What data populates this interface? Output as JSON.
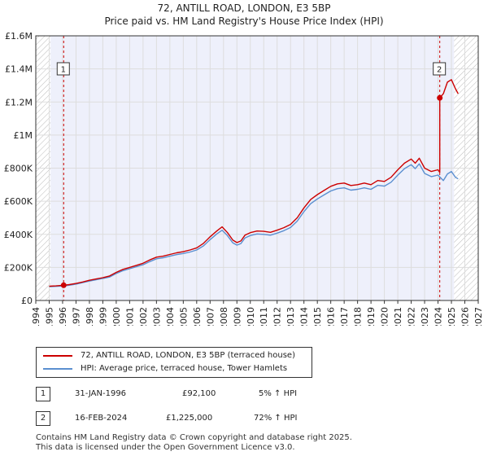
{
  "chart_data": {
    "type": "line",
    "title": "72, ANTILL ROAD, LONDON, E3 5BP",
    "subtitle": "Price paid vs. HM Land Registry's House Price Index (HPI)",
    "xlim": [
      1994,
      2027
    ],
    "ylim": [
      0,
      1600000
    ],
    "x_ticks": [
      "1994",
      "1995",
      "1996",
      "1997",
      "1998",
      "1999",
      "2000",
      "2001",
      "2002",
      "2003",
      "2004",
      "2005",
      "2006",
      "2007",
      "2008",
      "2009",
      "2010",
      "2011",
      "2012",
      "2013",
      "2014",
      "2015",
      "2016",
      "2017",
      "2018",
      "2019",
      "2020",
      "2021",
      "2022",
      "2023",
      "2024",
      "2025",
      "2026",
      "2027"
    ],
    "y_ticks": [
      {
        "value": 0,
        "label": "£0"
      },
      {
        "value": 200000,
        "label": "£200K"
      },
      {
        "value": 400000,
        "label": "£400K"
      },
      {
        "value": 600000,
        "label": "£600K"
      },
      {
        "value": 800000,
        "label": "£800K"
      },
      {
        "value": 1000000,
        "label": "£1M"
      },
      {
        "value": 1200000,
        "label": "£1.2M"
      },
      {
        "value": 1400000,
        "label": "£1.4M"
      },
      {
        "value": 1600000,
        "label": "£1.6M"
      }
    ],
    "grid": true,
    "shaded_period": [
      1995.1,
      2025.2
    ],
    "hatched_before": 1995.1,
    "hatched_after": 2025.2,
    "series": [
      {
        "name": "72, ANTILL ROAD, LONDON, E3 5BP (terraced house)",
        "color": "#cc0000",
        "x": [
          1995.0,
          1995.5,
          1996.08,
          1996.5,
          1997.0,
          1997.5,
          1998.0,
          1998.5,
          1999.0,
          1999.5,
          2000.0,
          2000.5,
          2001.0,
          2001.5,
          2002.0,
          2002.5,
          2003.0,
          2003.5,
          2004.0,
          2004.5,
          2005.0,
          2005.5,
          2006.0,
          2006.5,
          2007.0,
          2007.5,
          2007.9,
          2008.3,
          2008.7,
          2009.0,
          2009.3,
          2009.6,
          2010.0,
          2010.5,
          2011.0,
          2011.5,
          2012.0,
          2012.5,
          2013.0,
          2013.5,
          2014.0,
          2014.5,
          2015.0,
          2015.5,
          2016.0,
          2016.5,
          2017.0,
          2017.5,
          2018.0,
          2018.5,
          2019.0,
          2019.5,
          2020.0,
          2020.5,
          2021.0,
          2021.5,
          2022.0,
          2022.3,
          2022.6,
          2023.0,
          2023.5,
          2024.0,
          2024.13,
          2024.13,
          2024.4,
          2024.7,
          2025.0,
          2025.3,
          2025.5
        ],
        "values": [
          86000,
          88000,
          92100,
          96000,
          103000,
          112000,
          122000,
          130000,
          138000,
          148000,
          170000,
          188000,
          200000,
          212000,
          225000,
          245000,
          262000,
          268000,
          278000,
          288000,
          295000,
          305000,
          318000,
          345000,
          385000,
          420000,
          445000,
          410000,
          365000,
          350000,
          360000,
          395000,
          410000,
          420000,
          418000,
          412000,
          425000,
          440000,
          460000,
          500000,
          560000,
          610000,
          640000,
          665000,
          690000,
          705000,
          710000,
          695000,
          700000,
          710000,
          700000,
          725000,
          720000,
          745000,
          790000,
          830000,
          855000,
          830000,
          860000,
          800000,
          780000,
          790000,
          775000,
          1225000,
          1250000,
          1320000,
          1335000,
          1280000,
          1250000
        ]
      },
      {
        "name": "HPI: Average price, terraced house, Tower Hamlets",
        "color": "#5b8fd0",
        "x": [
          1995.0,
          1995.5,
          1996.08,
          1996.5,
          1997.0,
          1997.5,
          1998.0,
          1998.5,
          1999.0,
          1999.5,
          2000.0,
          2000.5,
          2001.0,
          2001.5,
          2002.0,
          2002.5,
          2003.0,
          2003.5,
          2004.0,
          2004.5,
          2005.0,
          2005.5,
          2006.0,
          2006.5,
          2007.0,
          2007.5,
          2007.9,
          2008.3,
          2008.7,
          2009.0,
          2009.3,
          2009.6,
          2010.0,
          2010.5,
          2011.0,
          2011.5,
          2012.0,
          2012.5,
          2013.0,
          2013.5,
          2014.0,
          2014.5,
          2015.0,
          2015.5,
          2016.0,
          2016.5,
          2017.0,
          2017.5,
          2018.0,
          2018.5,
          2019.0,
          2019.5,
          2020.0,
          2020.5,
          2021.0,
          2021.5,
          2022.0,
          2022.3,
          2022.6,
          2023.0,
          2023.5,
          2024.0,
          2024.4,
          2024.7,
          2025.0,
          2025.3,
          2025.5
        ],
        "values": [
          83000,
          85000,
          87700,
          92000,
          99000,
          108000,
          117000,
          125000,
          133000,
          142000,
          163000,
          180000,
          192000,
          204000,
          216000,
          235000,
          252000,
          258000,
          268000,
          277000,
          284000,
          293000,
          305000,
          330000,
          368000,
          402000,
          425000,
          392000,
          348000,
          335000,
          344000,
          378000,
          393000,
          402000,
          400000,
          395000,
          407000,
          422000,
          441000,
          480000,
          537000,
          585000,
          614000,
          638000,
          662000,
          676000,
          681000,
          667000,
          672000,
          681000,
          672000,
          696000,
          691000,
          715000,
          758000,
          797000,
          821000,
          797000,
          826000,
          768000,
          749000,
          758000,
          725000,
          765000,
          780000,
          745000,
          735000
        ]
      }
    ],
    "sales": [
      {
        "label": "1",
        "x": 1996.08,
        "value": 92100
      },
      {
        "label": "2",
        "x": 2024.13,
        "value": 1225000
      }
    ]
  },
  "legend": [
    {
      "label": "72, ANTILL ROAD, LONDON, E3 5BP (terraced house)",
      "color": "#cc0000"
    },
    {
      "label": "HPI: Average price, terraced house, Tower Hamlets",
      "color": "#5b8fd0"
    }
  ],
  "transactions": [
    {
      "num": "1",
      "date": "31-JAN-1996",
      "price": "£92,100",
      "hpi": "5% ↑ HPI"
    },
    {
      "num": "2",
      "date": "16-FEB-2024",
      "price": "£1,225,000",
      "hpi": "72% ↑ HPI"
    }
  ],
  "footer": {
    "line1": "Contains HM Land Registry data © Crown copyright and database right 2025.",
    "line2": "This data is licensed under the Open Government Licence v3.0."
  }
}
